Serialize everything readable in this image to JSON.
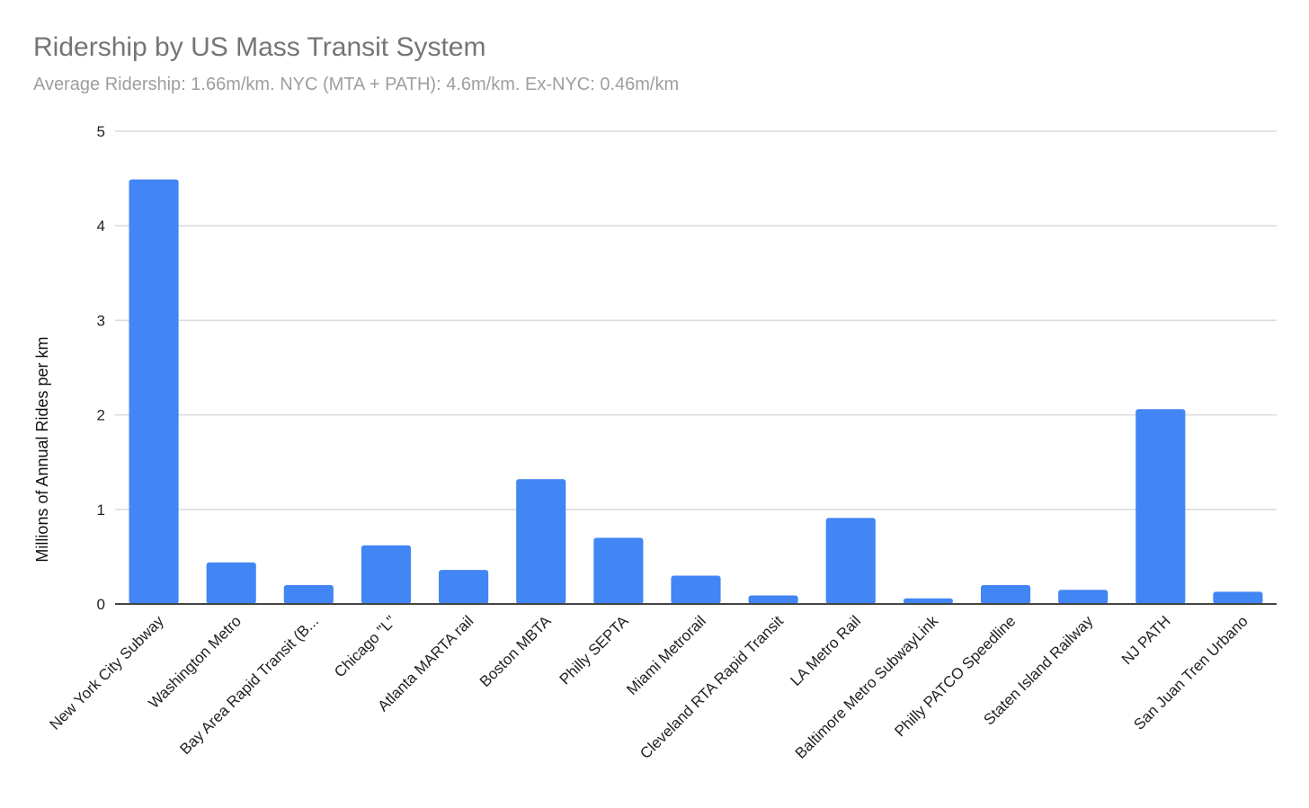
{
  "chart_data": {
    "type": "bar",
    "title": "Ridership by US Mass Transit System",
    "subtitle": "Average Ridership: 1.66m/km. NYC (MTA + PATH): 4.6m/km. Ex-NYC: 0.46m/km",
    "xlabel": "",
    "ylabel": "Millions of Annual Rides per km",
    "ylim": [
      0,
      5
    ],
    "yticks": [
      0,
      1,
      2,
      3,
      4,
      5
    ],
    "grid": true,
    "categories": [
      "New York City Subway",
      "Washington Metro",
      "Bay Area Rapid Transit (B...",
      "Chicago \"L\"",
      "Atlanta MARTA rail",
      "Boston MBTA",
      "Philly SEPTA",
      "Miami Metrorail",
      "Cleveland RTA Rapid Transit",
      "LA Metro Rail",
      "Baltimore Metro SubwayLink",
      "Philly PATCO Speedline",
      "Staten Island Railway",
      "NJ PATH",
      "San Juan Tren Urbano"
    ],
    "values": [
      4.49,
      0.44,
      0.2,
      0.62,
      0.36,
      1.32,
      0.7,
      0.3,
      0.09,
      0.91,
      0.06,
      0.2,
      0.15,
      2.06,
      0.13
    ],
    "bar_color": "#4285f4",
    "grid_color": "#dadada",
    "axis_color": "#444444"
  }
}
